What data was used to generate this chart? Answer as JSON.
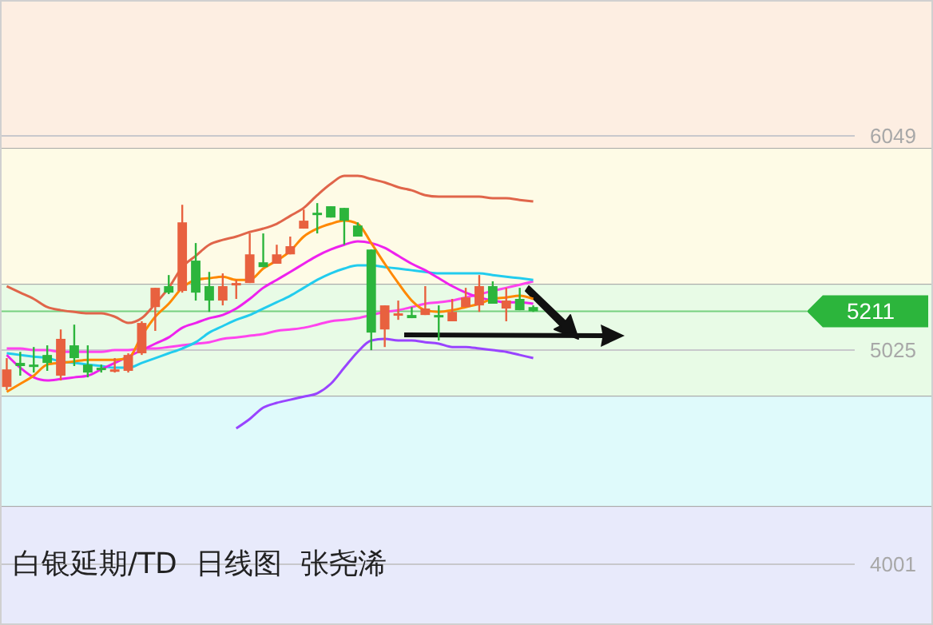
{
  "chart_data": {
    "type": "candlestick",
    "title": "白银延期/TD  日线图  张尧浠",
    "categories": [
      null,
      null,
      null,
      null,
      null,
      null,
      null,
      null,
      null,
      null,
      null,
      null,
      null,
      null,
      null,
      null,
      null,
      null,
      null,
      null,
      null,
      null,
      null,
      null,
      null,
      null,
      null,
      null,
      null,
      null,
      null,
      null,
      null,
      null,
      null,
      null,
      null,
      null,
      null,
      null
    ],
    "ohlc": [
      [
        4849,
        4987,
        4834,
        4933
      ],
      [
        4964,
        5017,
        4903,
        4949
      ],
      [
        4956,
        5040,
        4918,
        4949
      ],
      [
        5002,
        5048,
        4926,
        4964
      ],
      [
        4903,
        5124,
        4880,
        5079
      ],
      [
        5048,
        5147,
        4949,
        4987
      ],
      [
        4956,
        5048,
        4895,
        4918
      ],
      [
        4941,
        4956,
        4918,
        4933
      ],
      [
        4926,
        4987,
        4918,
        4933
      ],
      [
        4926,
        5010,
        4918,
        5002
      ],
      [
        5010,
        5163,
        5002,
        5155
      ],
      [
        5231,
        5323,
        5117,
        5323
      ],
      [
        5331,
        5384,
        5293,
        5300
      ],
      [
        5308,
        5720,
        5300,
        5636
      ],
      [
        5453,
        5537,
        5262,
        5300
      ],
      [
        5331,
        5399,
        5208,
        5262
      ],
      [
        5262,
        5392,
        5239,
        5331
      ],
      [
        5338,
        5361,
        5270,
        5346
      ],
      [
        5346,
        5583,
        5346,
        5483
      ],
      [
        5445,
        5583,
        5422,
        5422
      ],
      [
        5438,
        5529,
        5438,
        5483
      ],
      [
        5483,
        5568,
        5483,
        5522
      ],
      [
        5606,
        5697,
        5606,
        5644
      ],
      [
        5682,
        5728,
        5583,
        5674
      ],
      [
        5713,
        5713,
        5659,
        5659
      ],
      [
        5705,
        5705,
        5529,
        5644
      ],
      [
        5621,
        5636,
        5568,
        5568
      ],
      [
        5506,
        5506,
        5025,
        5109
      ],
      [
        5124,
        5239,
        5040,
        5239
      ],
      [
        5193,
        5262,
        5170,
        5201
      ],
      [
        5193,
        5231,
        5178,
        5178
      ],
      [
        5193,
        5331,
        5193,
        5224
      ],
      [
        5193,
        5239,
        5071,
        5185
      ],
      [
        5163,
        5270,
        5163,
        5208
      ],
      [
        5231,
        5323,
        5231,
        5277
      ],
      [
        5239,
        5384,
        5208,
        5331
      ],
      [
        5331,
        5354,
        5247,
        5247
      ],
      [
        5224,
        5323,
        5163,
        5262
      ],
      [
        5270,
        5323,
        5216,
        5216
      ],
      [
        5231,
        5239,
        5208,
        5211
      ]
    ],
    "colors": [
      "#e8613f",
      "#2cb53c",
      "#2cb53c",
      "#2cb53c",
      "#e8613f",
      "#2cb53c",
      "#2cb53c",
      "#2cb53c",
      "#e8613f",
      "#e8613f",
      "#e8613f",
      "#e8613f",
      "#2cb53c",
      "#e8613f",
      "#2cb53c",
      "#2cb53c",
      "#e8613f",
      "#e8613f",
      "#e8613f",
      "#2cb53c",
      "#e8613f",
      "#e8613f",
      "#e8613f",
      "#2cb53c",
      "#2cb53c",
      "#2cb53c",
      "#2cb53c",
      "#2cb53c",
      "#e8613f",
      "#e8613f",
      "#2cb53c",
      "#e8613f",
      "#2cb53c",
      "#e8613f",
      "#e8613f",
      "#e8613f",
      "#2cb53c",
      "#e8613f",
      "#2cb53c",
      "#2cb53c"
    ],
    "series": [
      {
        "type": "line",
        "color": "#e0654a",
        "values": [
          5331,
          5300,
          5270,
          5231,
          5216,
          5208,
          5201,
          5201,
          5185,
          5155,
          5178,
          5247,
          5323,
          5422,
          5476,
          5529,
          5552,
          5568,
          5590,
          5606,
          5629,
          5667,
          5705,
          5766,
          5820,
          5858,
          5858,
          5843,
          5827,
          5804,
          5789,
          5766,
          5759,
          5759,
          5759,
          5759,
          5751,
          5751,
          5743,
          5736
        ]
      },
      {
        "type": "line",
        "color": "#ff44ee",
        "values": [
          5033,
          5033,
          5025,
          5025,
          5017,
          5017,
          5017,
          5017,
          5025,
          5025,
          5033,
          5033,
          5040,
          5048,
          5056,
          5063,
          5079,
          5086,
          5094,
          5102,
          5117,
          5124,
          5132,
          5147,
          5163,
          5170,
          5178,
          5193,
          5208,
          5216,
          5231,
          5247,
          5254,
          5262,
          5277,
          5292,
          5308,
          5323,
          5338,
          5354
        ]
      },
      {
        "type": "line",
        "color": "#9944ff",
        "values": [
          null,
          null,
          null,
          null,
          null,
          null,
          null,
          null,
          null,
          null,
          null,
          null,
          null,
          null,
          null,
          null,
          null,
          4651,
          4696,
          4750,
          4773,
          4788,
          4803,
          4819,
          4864,
          4941,
          5017,
          5071,
          5079,
          5071,
          5071,
          5063,
          5056,
          5040,
          5040,
          5033,
          5025,
          5017,
          5002,
          4987
        ]
      },
      {
        "type": "line",
        "color": "#22ccee",
        "values": [
          5010,
          5002,
          4994,
          4987,
          4971,
          4964,
          4956,
          4949,
          4941,
          4941,
          4964,
          4987,
          5010,
          5033,
          5063,
          5109,
          5140,
          5170,
          5193,
          5224,
          5254,
          5285,
          5323,
          5361,
          5392,
          5415,
          5430,
          5430,
          5422,
          5415,
          5407,
          5399,
          5392,
          5392,
          5392,
          5392,
          5384,
          5376,
          5369,
          5361
        ]
      },
      {
        "type": "line",
        "color": "#ee22ee",
        "values": [
          5002,
          4941,
          4895,
          4880,
          4887,
          4895,
          4903,
          4933,
          4964,
          4994,
          5025,
          5056,
          5086,
          5132,
          5155,
          5178,
          5193,
          5224,
          5270,
          5323,
          5361,
          5399,
          5438,
          5476,
          5506,
          5529,
          5545,
          5537,
          5514,
          5476,
          5438,
          5407,
          5369,
          5331,
          5300,
          5277,
          5262,
          5254,
          5254,
          5247
        ]
      },
      {
        "type": "line",
        "color": "#ff8800",
        "values": [
          4826,
          4864,
          4903,
          4956,
          4964,
          4971,
          4979,
          4979,
          4979,
          4987,
          5094,
          5185,
          5247,
          5323,
          5361,
          5369,
          5376,
          5361,
          5361,
          5415,
          5453,
          5499,
          5568,
          5606,
          5629,
          5644,
          5629,
          5537,
          5438,
          5346,
          5262,
          5216,
          5208,
          5216,
          5231,
          5247,
          5270,
          5277,
          5285,
          5270
        ]
      }
    ],
    "ylim": [
      3711,
      6699
    ],
    "yticks": [
      6049,
      5025,
      4001
    ],
    "grid": "y",
    "ref_lines": [
      {
        "axis": "y",
        "value": 5211,
        "label": "5211",
        "color": "#2cb53c"
      }
    ],
    "bands": [
      {
        "axis": "y",
        "from": 5988,
        "to": 6699,
        "color": "#fdeee2"
      },
      {
        "axis": "y",
        "from": 5338,
        "to": 5988,
        "color": "#fefbe6"
      },
      {
        "axis": "y",
        "from": 4803,
        "to": 5338,
        "color": "#e8fbe6"
      },
      {
        "axis": "y",
        "from": 4276,
        "to": 4803,
        "color": "#dffafb"
      },
      {
        "axis": "y",
        "from": 3711,
        "to": 4276,
        "color": "#e8eafb"
      }
    ]
  }
}
